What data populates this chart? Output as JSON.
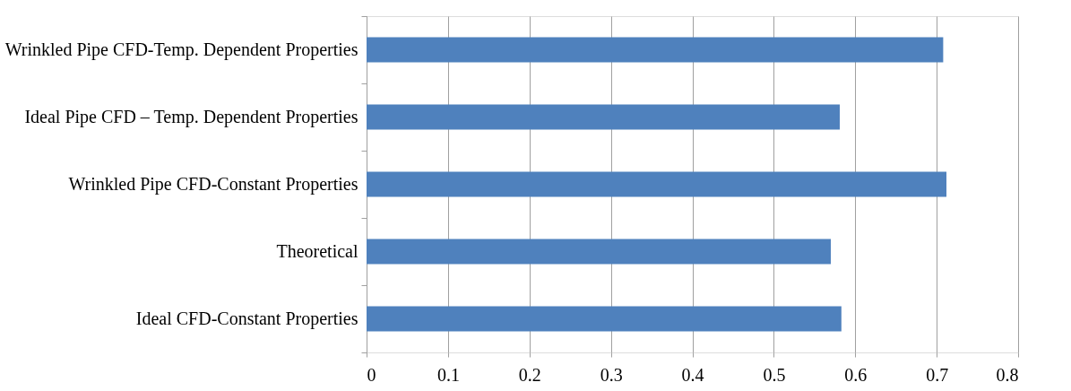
{
  "chart_data": {
    "type": "bar",
    "orientation": "horizontal",
    "categories": [
      "Wrinkled Pipe CFD-Temp. Dependent Properties",
      "Ideal Pipe CFD – Temp. Dependent Properties",
      "Wrinkled Pipe CFD-Constant Properties",
      "Theoretical",
      "Ideal CFD-Constant Properties"
    ],
    "values": [
      0.708,
      0.581,
      0.712,
      0.57,
      0.583
    ],
    "color": "#4f81bd",
    "xlim": [
      0,
      0.8
    ],
    "xticks": [
      0,
      0.1,
      0.2,
      0.3,
      0.4,
      0.5,
      0.6,
      0.7,
      0.8
    ],
    "grid": "x"
  }
}
